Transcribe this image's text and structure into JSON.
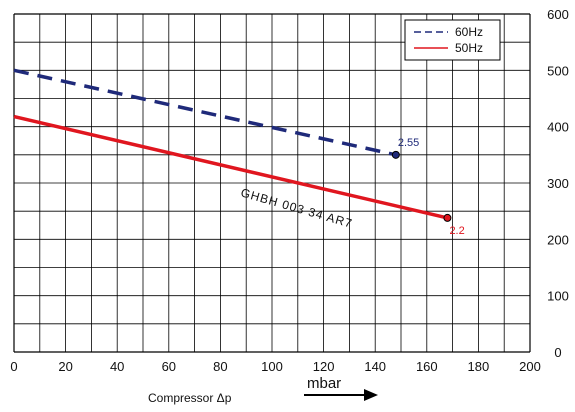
{
  "chart_data": {
    "type": "line",
    "xlabel": "Compressor  Δp",
    "x_unit": "mbar",
    "xlim": [
      0,
      200
    ],
    "ylim": [
      0,
      600
    ],
    "x_ticks": [
      "0",
      "20",
      "40",
      "60",
      "80",
      "100",
      "120",
      "140",
      "160",
      "180",
      "200"
    ],
    "y_ticks": [
      "0",
      "100",
      "200",
      "300",
      "400",
      "500",
      "600"
    ],
    "grid": true,
    "legend_position": "top-right",
    "annotation": "GHBH 003 34 AR7",
    "series": [
      {
        "name": "60Hz",
        "color": "#1f2a7a",
        "style": "dashed",
        "points": [
          [
            0,
            500
          ],
          [
            148,
            350
          ]
        ],
        "end_label": "2.55"
      },
      {
        "name": "50Hz",
        "color": "#e0161f",
        "style": "solid",
        "points": [
          [
            0,
            418
          ],
          [
            168,
            238
          ]
        ],
        "end_label": "2.2"
      }
    ]
  }
}
